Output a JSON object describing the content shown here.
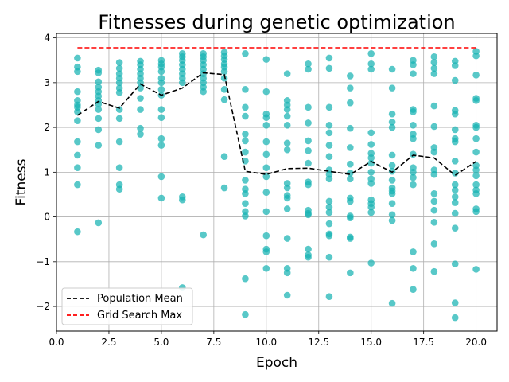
{
  "chart_data": {
    "type": "scatter",
    "title": "Fitnesses during genetic optimization",
    "xlabel": "Epoch",
    "ylabel": "Fitness",
    "xlim": [
      0,
      21
    ],
    "ylim": [
      -2.55,
      4.1
    ],
    "xticks": [
      0,
      2.5,
      5,
      7.5,
      10,
      12.5,
      15,
      17.5,
      20
    ],
    "xtick_labels": [
      "0.0",
      "2.5",
      "5.0",
      "7.5",
      "10.0",
      "12.5",
      "15.0",
      "17.5",
      "20.0"
    ],
    "yticks": [
      -2,
      -1,
      0,
      1,
      2,
      3,
      4
    ],
    "ytick_labels": [
      "−2",
      "−1",
      "0",
      "1",
      "2",
      "3",
      "4"
    ],
    "grid": true,
    "legend_position": "lower-left",
    "colors": {
      "points": "#17b3b3",
      "mean": "#000000",
      "grid_max": "#ff0000"
    },
    "population": [
      {
        "epoch": 1,
        "values": [
          3.55,
          3.35,
          3.25,
          2.8,
          2.6,
          2.5,
          2.45,
          2.35,
          2.15,
          1.68,
          1.38,
          1.1,
          0.72,
          -0.33
        ]
      },
      {
        "epoch": 2,
        "values": [
          3.28,
          3.22,
          3.02,
          2.9,
          2.8,
          2.7,
          2.6,
          2.52,
          2.4,
          2.2,
          1.95,
          1.6,
          -0.13
        ]
      },
      {
        "epoch": 3,
        "values": [
          3.45,
          3.32,
          3.2,
          3.1,
          3.0,
          2.88,
          2.78,
          2.4,
          2.2,
          1.68,
          1.1,
          0.72,
          0.62
        ]
      },
      {
        "epoch": 4,
        "values": [
          3.48,
          3.4,
          3.3,
          3.2,
          3.1,
          3.0,
          2.88,
          2.65,
          2.4,
          1.98,
          1.85
        ]
      },
      {
        "epoch": 5,
        "values": [
          3.5,
          3.42,
          3.35,
          3.25,
          3.1,
          3.0,
          2.85,
          2.72,
          2.4,
          2.22,
          1.75,
          1.6,
          0.9,
          0.42
        ]
      },
      {
        "epoch": 6,
        "values": [
          3.65,
          3.58,
          3.5,
          3.4,
          3.3,
          3.2,
          3.1,
          3.0,
          0.45,
          0.38,
          -1.58
        ]
      },
      {
        "epoch": 7,
        "values": [
          3.65,
          3.58,
          3.5,
          3.4,
          3.3,
          3.2,
          3.1,
          3.0,
          2.9,
          2.8,
          -0.4
        ]
      },
      {
        "epoch": 8,
        "values": [
          3.68,
          3.6,
          3.52,
          3.42,
          3.35,
          3.25,
          3.1,
          2.85,
          2.62,
          1.35,
          0.65
        ]
      },
      {
        "epoch": 9,
        "values": [
          3.65,
          2.85,
          2.45,
          2.25,
          1.85,
          1.7,
          1.45,
          1.25,
          0.82,
          0.62,
          0.52,
          0.3,
          0.12,
          0.02,
          -1.38,
          -2.18
        ]
      },
      {
        "epoch": 10,
        "values": [
          3.52,
          2.8,
          2.3,
          2.22,
          2.05,
          1.68,
          1.4,
          1.1,
          0.9,
          0.55,
          0.12,
          -0.42,
          -0.72,
          -0.78,
          -1.15
        ]
      },
      {
        "epoch": 11,
        "values": [
          3.2,
          2.6,
          2.5,
          2.4,
          2.25,
          2.05,
          1.65,
          1.5,
          0.75,
          0.65,
          0.48,
          0.42,
          0.18,
          -0.48,
          -1.15,
          -1.25,
          -1.75
        ]
      },
      {
        "epoch": 12,
        "values": [
          3.42,
          3.3,
          2.45,
          2.1,
          1.7,
          1.48,
          1.2,
          0.78,
          0.72,
          0.15,
          0.08,
          0.05,
          -0.72,
          -0.85,
          -0.9
        ]
      },
      {
        "epoch": 13,
        "values": [
          3.55,
          3.32,
          2.45,
          2.05,
          1.88,
          1.6,
          1.35,
          1.05,
          0.95,
          0.85,
          0.35,
          0.22,
          0.1,
          -0.15,
          -0.38,
          -0.42,
          -0.9,
          -1.78
        ]
      },
      {
        "epoch": 14,
        "values": [
          3.15,
          2.88,
          2.55,
          1.98,
          1.55,
          1.18,
          0.98,
          0.85,
          0.42,
          0.35,
          0.02,
          -0.02,
          -0.45,
          -0.48,
          -1.25
        ]
      },
      {
        "epoch": 15,
        "values": [
          3.65,
          3.42,
          3.3,
          1.88,
          1.62,
          1.42,
          1.32,
          1.2,
          1.0,
          0.85,
          0.75,
          0.38,
          0.3,
          0.22,
          0.1,
          -1.03
        ]
      },
      {
        "epoch": 16,
        "values": [
          3.3,
          2.88,
          2.3,
          2.12,
          2.0,
          1.38,
          1.15,
          1.02,
          0.82,
          0.65,
          0.58,
          0.52,
          0.3,
          0.05,
          -0.08,
          -1.93
        ]
      },
      {
        "epoch": 17,
        "values": [
          3.5,
          3.4,
          3.2,
          2.4,
          2.35,
          2.05,
          1.85,
          1.75,
          1.4,
          1.1,
          1.0,
          0.88,
          0.72,
          -0.78,
          -1.15,
          -1.62
        ]
      },
      {
        "epoch": 18,
        "values": [
          3.58,
          3.45,
          3.32,
          3.2,
          2.48,
          2.02,
          1.55,
          1.45,
          1.05,
          0.95,
          0.52,
          0.35,
          0.15,
          -0.12,
          -0.6,
          -1.22
        ]
      },
      {
        "epoch": 19,
        "values": [
          3.48,
          3.38,
          3.05,
          2.38,
          2.3,
          1.95,
          1.75,
          1.68,
          1.25,
          0.98,
          0.72,
          0.6,
          0.45,
          0.32,
          0.08,
          -0.25,
          -1.05,
          -1.92,
          -2.25
        ]
      },
      {
        "epoch": 20,
        "values": [
          3.7,
          3.6,
          3.17,
          2.65,
          2.6,
          2.05,
          2.0,
          1.75,
          1.45,
          1.15,
          1.05,
          0.92,
          0.72,
          0.6,
          0.52,
          0.18,
          0.12,
          -1.17
        ]
      }
    ],
    "series": [
      {
        "name": "Population Mean",
        "style": "dashed",
        "x": [
          1,
          2,
          3,
          4,
          5,
          6,
          7,
          8,
          9,
          10,
          11,
          12,
          13,
          14,
          15,
          16,
          17,
          18,
          19,
          20
        ],
        "y": [
          2.27,
          2.58,
          2.43,
          2.97,
          2.72,
          2.88,
          3.22,
          3.18,
          1.02,
          0.95,
          1.08,
          1.09,
          1.02,
          0.95,
          1.24,
          1.0,
          1.38,
          1.32,
          0.93,
          1.24
        ]
      },
      {
        "name": "Grid Search Max",
        "style": "dashed",
        "x": [
          1,
          20
        ],
        "y": [
          3.78,
          3.78
        ]
      }
    ],
    "legend": [
      "Population Mean",
      "Grid Search Max"
    ]
  }
}
